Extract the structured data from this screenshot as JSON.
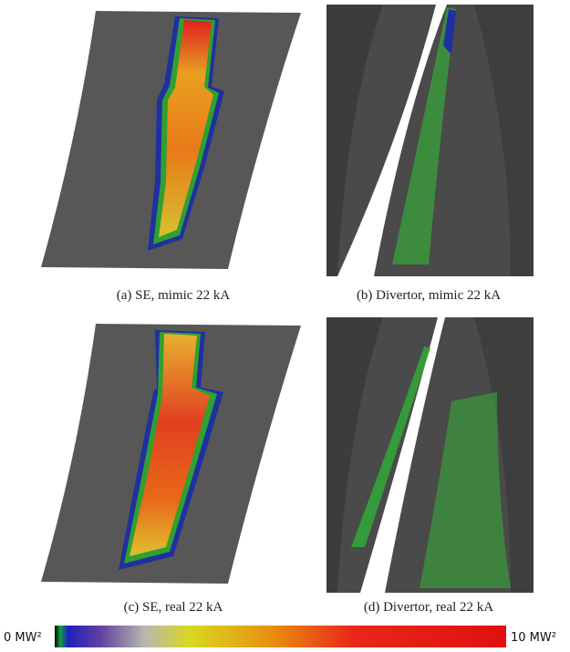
{
  "panels": [
    {
      "caption": "(a) SE, mimic 22 kA"
    },
    {
      "caption": "(b) Divertor, mimic 22 kA"
    },
    {
      "caption": "(c) SE, real 22 kA"
    },
    {
      "caption": "(d) Divertor, real 22 kA"
    }
  ],
  "colorbar": {
    "min_label": "0 MW²",
    "max_label": "10 MW²"
  }
}
